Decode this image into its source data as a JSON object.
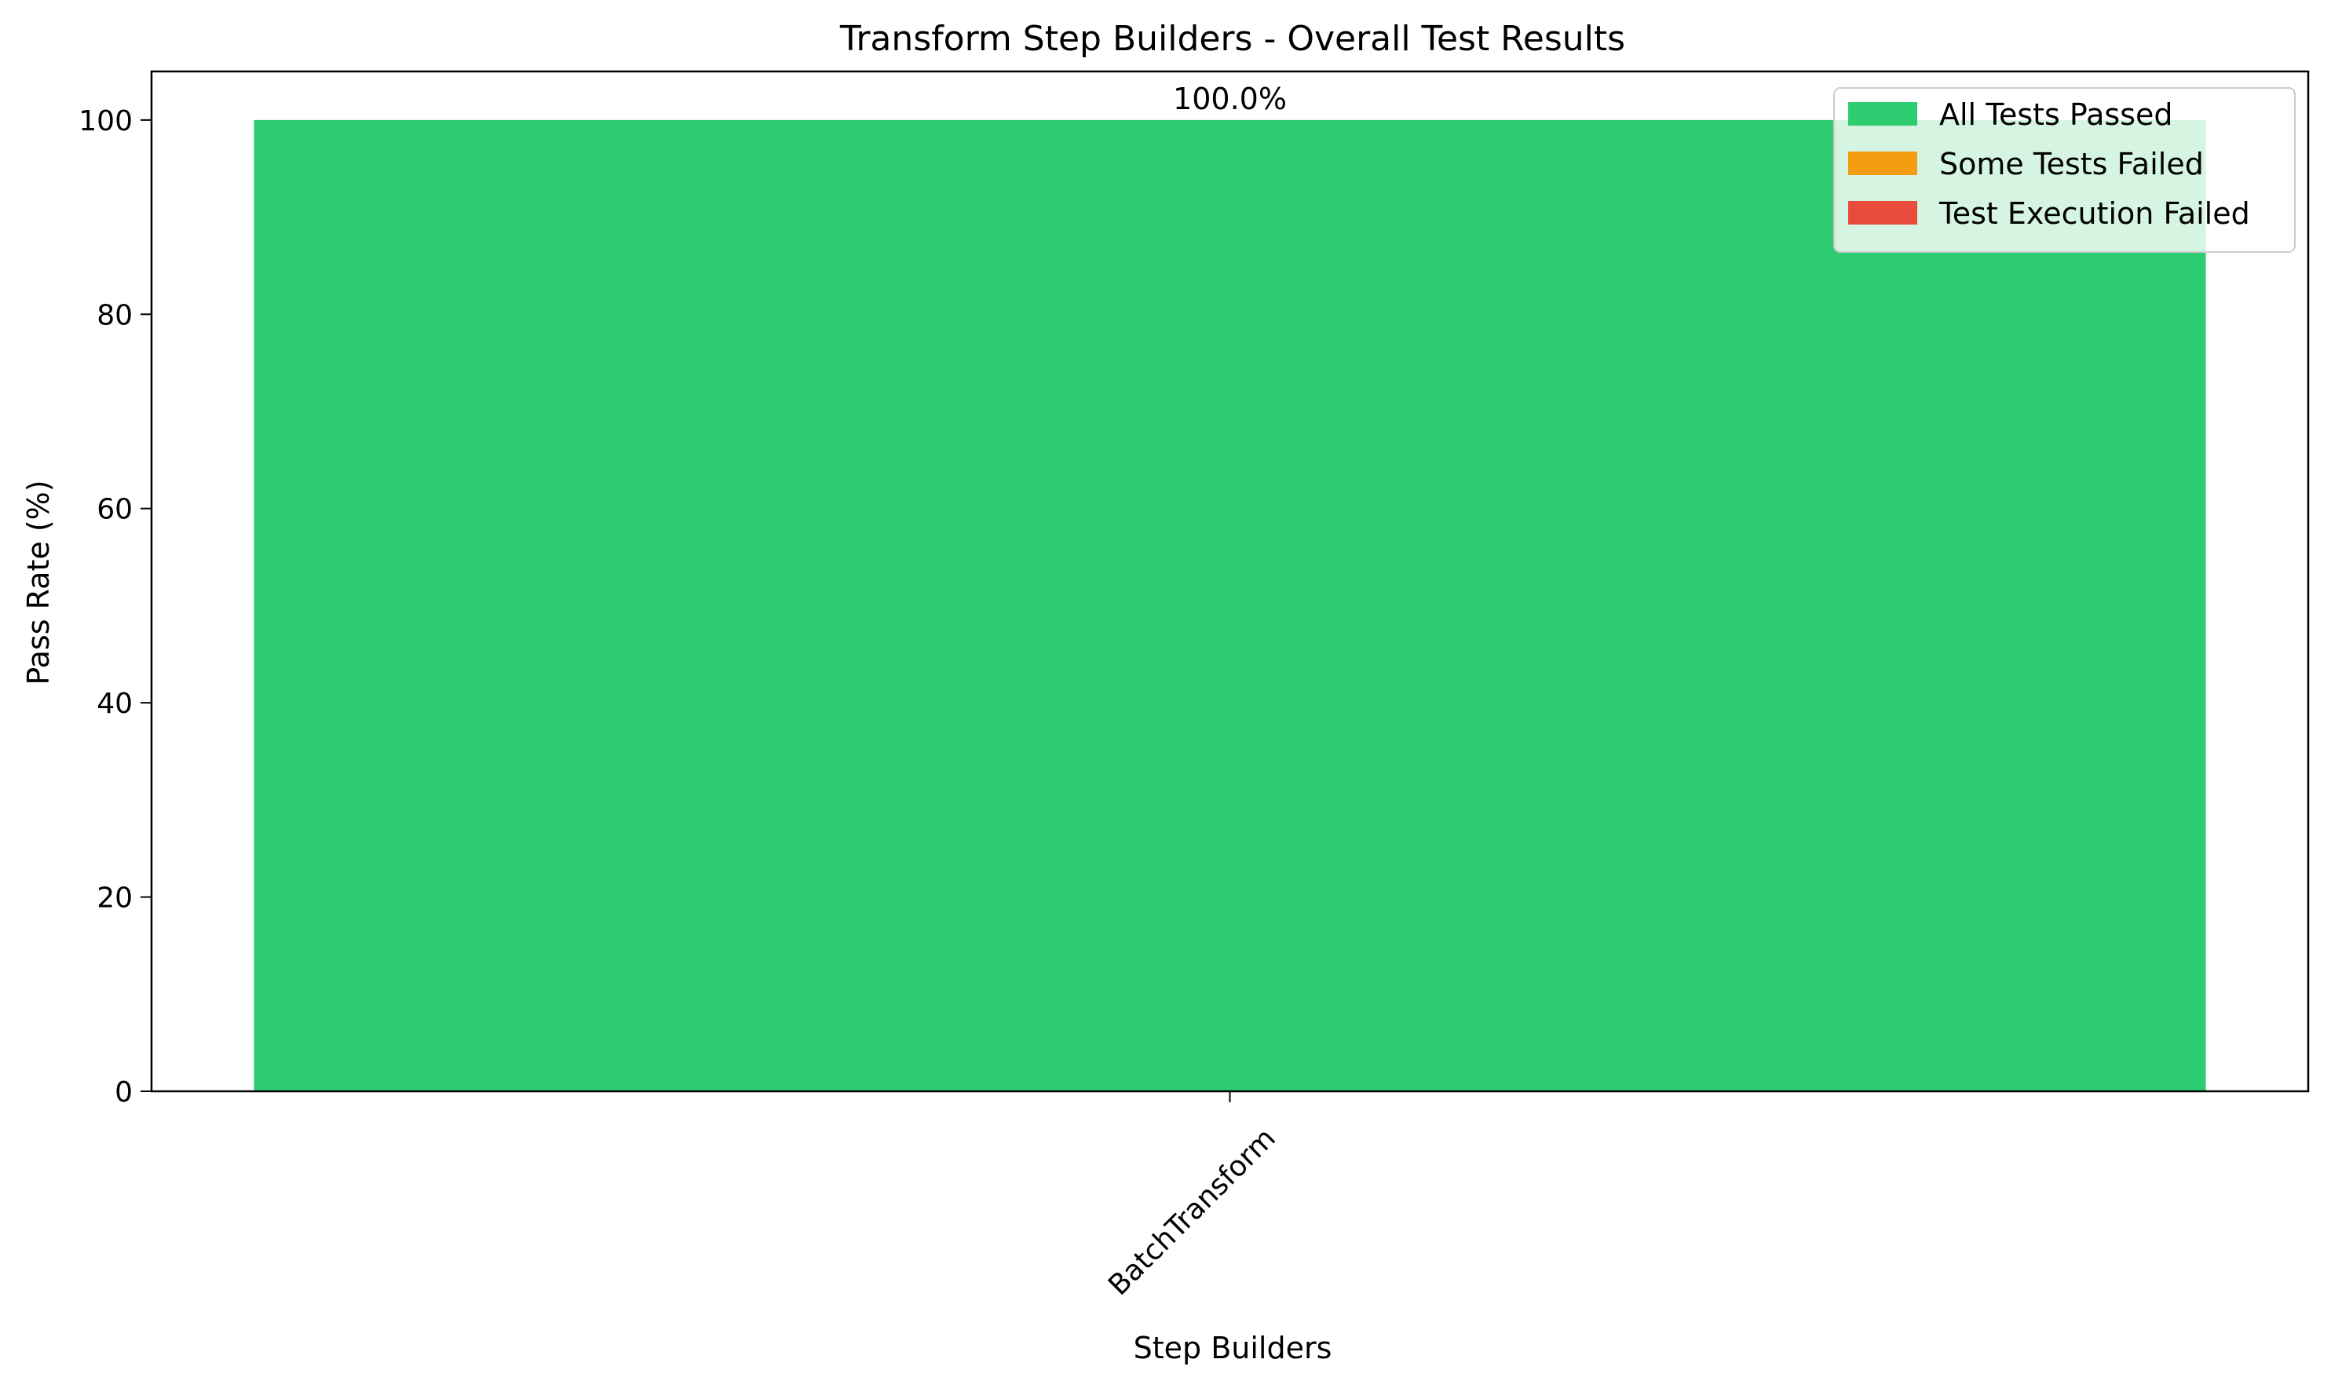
{
  "chart_data": {
    "type": "bar",
    "title": "Transform Step Builders - Overall Test Results",
    "xlabel": "Step Builders",
    "ylabel": "Pass Rate (%)",
    "categories": [
      "BatchTransform"
    ],
    "values": [
      100.0
    ],
    "value_labels": [
      "100.0%"
    ],
    "bar_status": [
      "All Tests Passed"
    ],
    "ylim": [
      0,
      105
    ],
    "y_ticks": [
      0,
      20,
      40,
      60,
      80,
      100
    ],
    "y_tick_labels": [
      "0",
      "20",
      "40",
      "60",
      "80",
      "100"
    ],
    "x_tick_rotation_deg": 45,
    "grid": false,
    "legend": {
      "placement": "top-right",
      "entries": [
        {
          "label": "All Tests Passed",
          "color": "#2ecc71"
        },
        {
          "label": "Some Tests Failed",
          "color": "#f39c12"
        },
        {
          "label": "Test Execution Failed",
          "color": "#e74c3c"
        }
      ]
    }
  }
}
